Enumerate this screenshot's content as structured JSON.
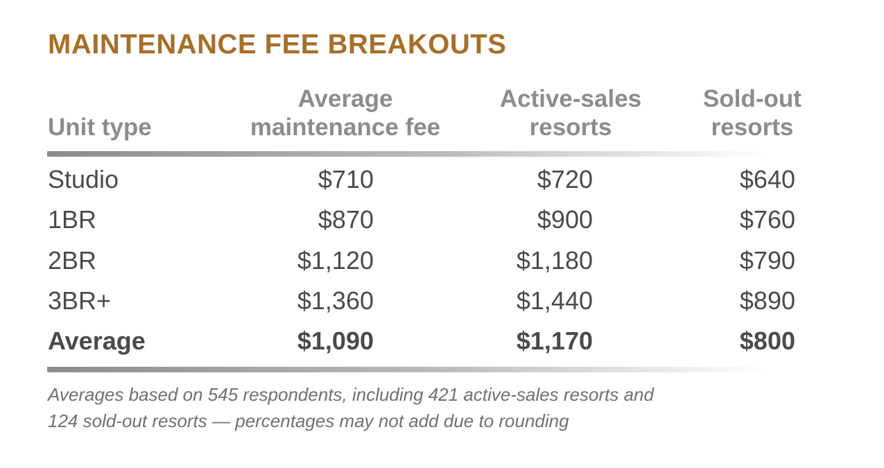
{
  "title": "MAINTENANCE FEE BREAKOUTS",
  "colors": {
    "title": "#a66f2a",
    "header_text": "#8a8c8f",
    "body_text": "#4a4a4d",
    "footnote_text": "#707073",
    "rule_start": "#8a8c8f",
    "rule_end": "#ffffff"
  },
  "chart_data": {
    "type": "table",
    "title": "MAINTENANCE FEE BREAKOUTS",
    "columns": [
      {
        "lines": [
          "Unit type"
        ]
      },
      {
        "lines": [
          "Average",
          "maintenance fee"
        ]
      },
      {
        "lines": [
          "Active-sales",
          "resorts"
        ]
      },
      {
        "lines": [
          "Sold-out",
          "resorts"
        ]
      }
    ],
    "rows": [
      {
        "cells": [
          "Studio",
          "$710",
          "$720",
          "$640"
        ],
        "bold": false
      },
      {
        "cells": [
          "1BR",
          "$870",
          "$900",
          "$760"
        ],
        "bold": false
      },
      {
        "cells": [
          "2BR",
          "$1,120",
          "$1,180",
          "$790"
        ],
        "bold": false
      },
      {
        "cells": [
          "3BR+",
          "$1,360",
          "$1,440",
          "$890"
        ],
        "bold": false
      },
      {
        "cells": [
          "Average",
          "$1,090",
          "$1,170",
          "$800"
        ],
        "bold": true
      }
    ],
    "footnote": [
      "Averages based on 545 respondents, including 421 active-sales resorts and",
      "124 sold-out resorts — percentages may not add due to rounding"
    ]
  }
}
